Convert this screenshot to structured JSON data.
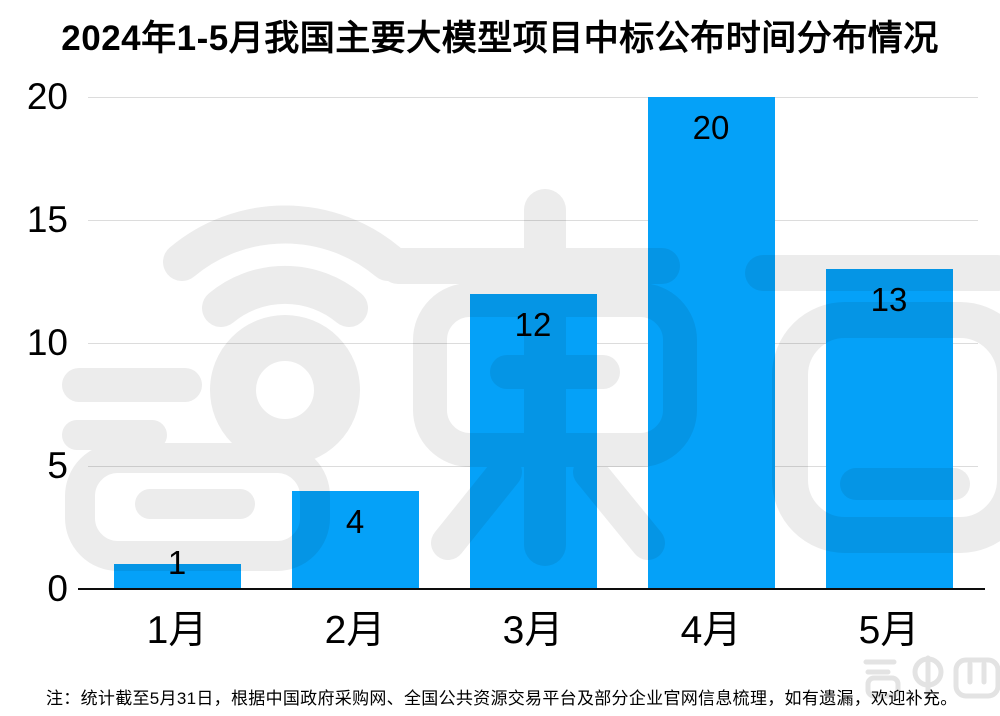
{
  "title": "2024年1-5月我国主要大模型项目中标公布时间分布情况",
  "footnote": "注：统计截至5月31日，根据中国政府采购网、全国公共资源交易平台及部分企业官网信息梳理，如有遗漏，欢迎补充。",
  "watermark": {
    "brand": "智东西",
    "color": "#ececec",
    "corner_color": "#e3e3e3"
  },
  "colors": {
    "bar": "#05a1f8",
    "gridline": "#dcdcdc",
    "axis": "#0d0d0d",
    "text": "#000000",
    "background": "#ffffff"
  },
  "chart_data": {
    "type": "bar",
    "categories": [
      "1月",
      "2月",
      "3月",
      "4月",
      "5月"
    ],
    "values": [
      1,
      4,
      12,
      20,
      13
    ],
    "bar_labels": [
      "1",
      "4",
      "12",
      "20",
      "13"
    ],
    "title": "2024年1-5月我国主要大模型项目中标公布时间分布情况",
    "xlabel": "",
    "ylabel": "",
    "ylim": [
      0,
      20
    ],
    "yticks": [
      0,
      5,
      10,
      15,
      20
    ],
    "ytick_labels": [
      "0",
      "5",
      "10",
      "15",
      "20"
    ],
    "grid": true,
    "legend": false,
    "bar_color": "#05a1f8",
    "value_label_position": "inside-top (above bar when bar too short)"
  }
}
